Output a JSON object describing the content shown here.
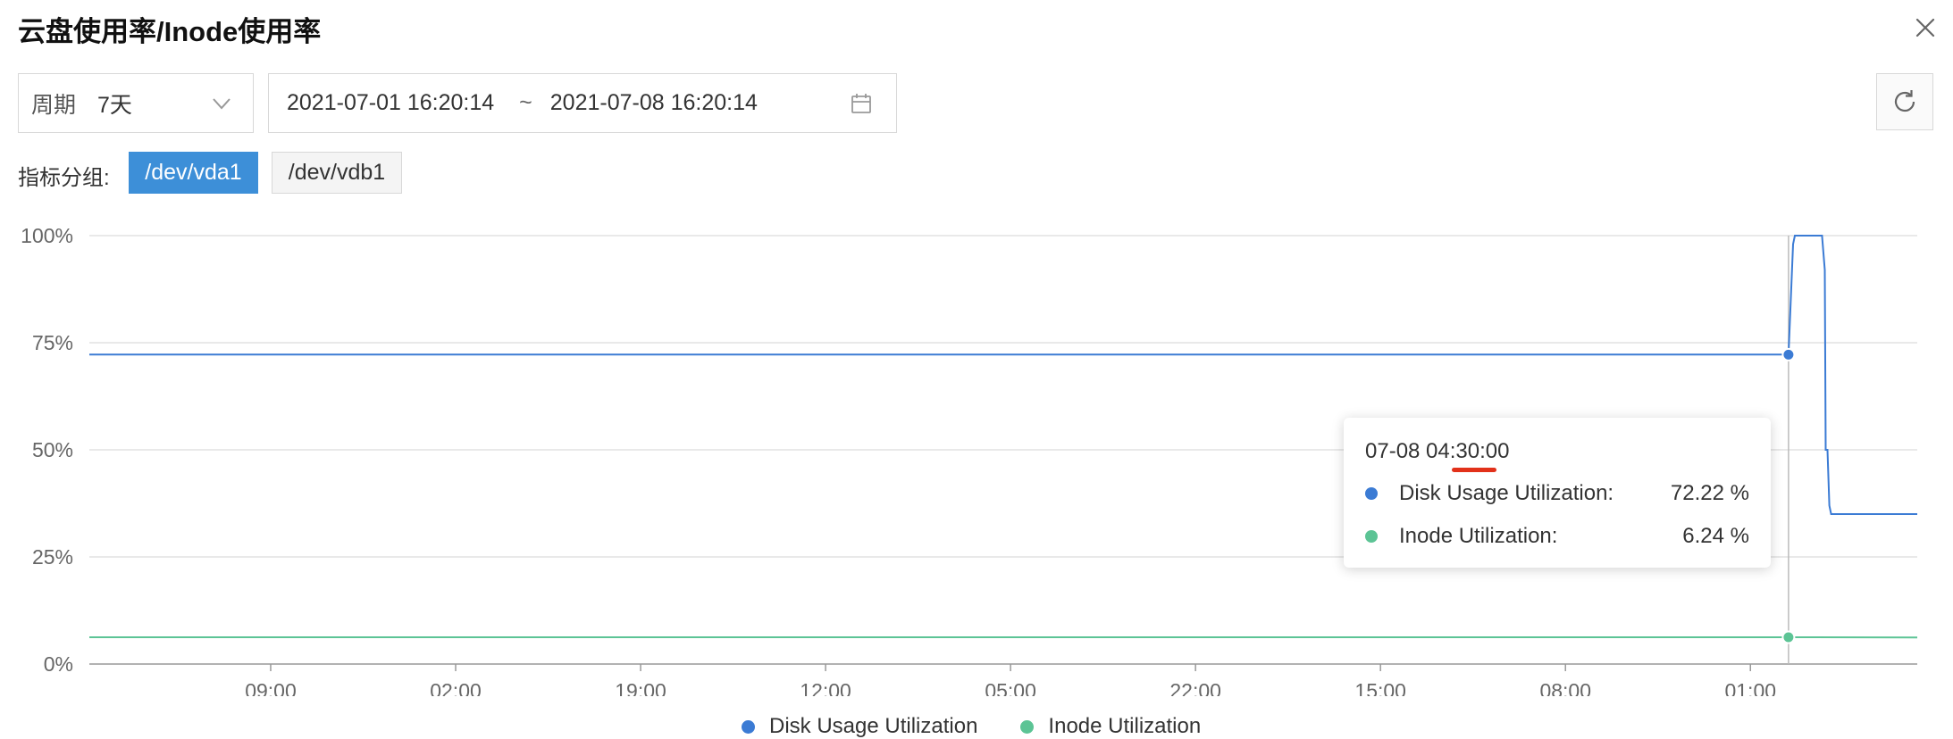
{
  "window": {
    "title": "云盘使用率/Inode使用率"
  },
  "toolbar": {
    "period_label": "周期",
    "period_value": "7天",
    "date_start": "2021-07-01 16:20:14",
    "date_separator": "~",
    "date_end": "2021-07-08 16:20:14"
  },
  "groups": {
    "label": "指标分组:",
    "items": [
      {
        "label": "/dev/vda1",
        "active": true
      },
      {
        "label": "/dev/vdb1",
        "active": false
      }
    ]
  },
  "colors": {
    "disk": "#3b7bd4",
    "inode": "#5cc495",
    "accent": "#3d8fd8",
    "grid": "#dcdcdc"
  },
  "tooltip": {
    "time": "07-08 04:30:00",
    "rows": [
      {
        "name": "Disk Usage Utilization:",
        "value": "72.22 %"
      },
      {
        "name": "Inode Utilization:",
        "value": "6.24 %"
      }
    ]
  },
  "chart_data": {
    "type": "line",
    "ylim": [
      0,
      100
    ],
    "y_ticks": [
      "0%",
      "25%",
      "50%",
      "75%",
      "100%"
    ],
    "y_tick_values": [
      0,
      25,
      50,
      75,
      100
    ],
    "xlim": [
      "07-01 16:20",
      "07-08 16:20"
    ],
    "x_ticks": [
      "09:00",
      "02:00",
      "19:00",
      "12:00",
      "05:00",
      "22:00",
      "15:00",
      "08:00",
      "01:00"
    ],
    "x_tick_times": [
      "07-02 09:00",
      "07-03 02:00",
      "07-03 19:00",
      "07-04 12:00",
      "07-05 05:00",
      "07-05 22:00",
      "07-06 15:00",
      "07-07 08:00",
      "07-08 01:00"
    ],
    "hover_time": "07-08 04:30",
    "series": [
      {
        "name": "Disk Usage Utilization",
        "points": [
          [
            "07-01 16:20",
            72.22
          ],
          [
            "07-08 04:30",
            72.22
          ],
          [
            "07-08 04:55",
            98
          ],
          [
            "07-08 05:05",
            100
          ],
          [
            "07-08 07:35",
            100
          ],
          [
            "07-08 07:50",
            92
          ],
          [
            "07-08 07:55",
            50
          ],
          [
            "07-08 08:05",
            50
          ],
          [
            "07-08 08:15",
            37
          ],
          [
            "07-08 08:25",
            35
          ],
          [
            "07-08 16:20",
            35
          ]
        ]
      },
      {
        "name": "Inode Utilization",
        "points": [
          [
            "07-01 16:20",
            6.24
          ],
          [
            "07-08 04:30",
            6.24
          ],
          [
            "07-08 16:20",
            6.2
          ]
        ]
      }
    ],
    "legend": [
      "Disk Usage Utilization",
      "Inode Utilization"
    ]
  }
}
